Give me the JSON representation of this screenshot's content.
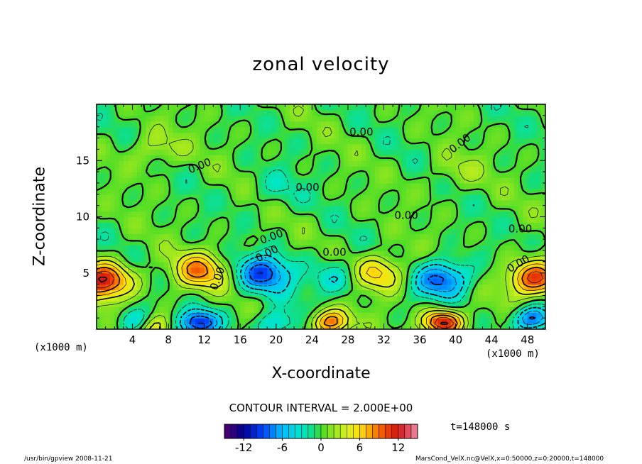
{
  "chart_data": {
    "type": "heatmap",
    "title": "zonal velocity",
    "xlabel": "X-coordinate",
    "ylabel": "Z-coordinate",
    "x_unit": "(x1000 m)",
    "xlim": [
      0,
      50
    ],
    "ylim": [
      0,
      20
    ],
    "x_ticks": [
      4,
      8,
      12,
      16,
      20,
      24,
      28,
      32,
      36,
      40,
      44,
      48
    ],
    "y_ticks": [
      5,
      10,
      15
    ],
    "contour_interval_label": "CONTOUR INTERVAL = 2.000E+00",
    "contour_labels": [
      "0.00",
      "0.00",
      "0.00",
      "0.00",
      "0.00",
      "0.00",
      "0.00",
      "0.00",
      "0.00",
      "0.00",
      "0.00"
    ],
    "colorbar": {
      "range": [
        -15,
        15
      ],
      "tick_values": [
        -12,
        -6,
        0,
        6,
        12
      ],
      "tick_labels": [
        "-12",
        "-6",
        "0",
        "6",
        "12"
      ]
    },
    "time_label": "t=148000 s",
    "features": [
      {
        "x": 0.8,
        "z": 4.3,
        "value": 12
      },
      {
        "x": 4.8,
        "z": 0.5,
        "value": -9
      },
      {
        "x": 6.0,
        "z": 0.3,
        "value": 10
      },
      {
        "x": 11.5,
        "z": 5.2,
        "value": 8
      },
      {
        "x": 11.5,
        "z": 0.6,
        "value": -11
      },
      {
        "x": 18.7,
        "z": 5.0,
        "value": -9
      },
      {
        "x": 20.0,
        "z": 0.5,
        "value": -5
      },
      {
        "x": 26.0,
        "z": 0.6,
        "value": 10
      },
      {
        "x": 26.5,
        "z": 4.5,
        "value": -4
      },
      {
        "x": 31.5,
        "z": 5.0,
        "value": 7
      },
      {
        "x": 38.6,
        "z": 4.5,
        "value": -9
      },
      {
        "x": 38.6,
        "z": 0.6,
        "value": 13
      },
      {
        "x": 48.8,
        "z": 4.5,
        "value": 11
      },
      {
        "x": 48.5,
        "z": 0.9,
        "value": -9
      },
      {
        "x": 6.5,
        "z": 16.0,
        "value": 3
      },
      {
        "x": 20.0,
        "z": 12.5,
        "value": -2
      },
      {
        "x": 40.0,
        "z": 14.0,
        "value": 2
      }
    ]
  },
  "footer": {
    "left": "/usr/bin/gpview   2008-11-21",
    "right": "MarsCond_VelX.nc@VelX,x=0:50000,z=0:20000,t=148000"
  }
}
